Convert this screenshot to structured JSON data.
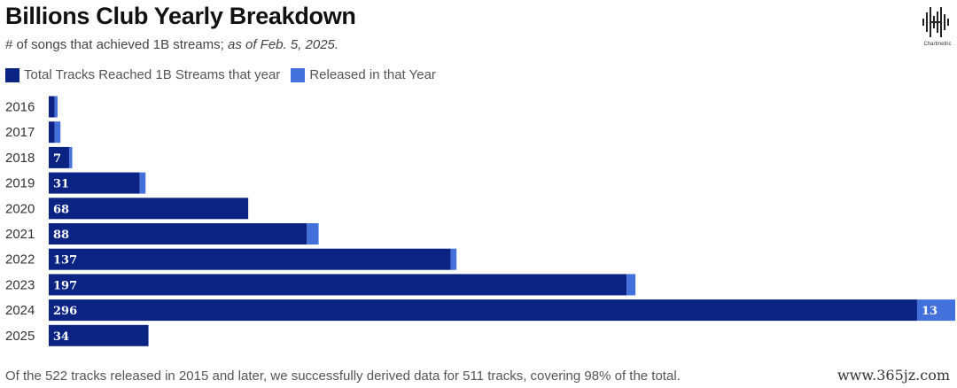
{
  "header": {
    "title": "Billions Club Yearly Breakdown",
    "subtitle_main": "# of songs that achieved 1B streams; ",
    "subtitle_italic": "as of Feb. 5, 2025."
  },
  "logo": {
    "text": "Chartmetric"
  },
  "footnote": "Of the 522 tracks released in 2015 and later, we successfully derived data for 511 tracks, covering 98% of the total.",
  "watermark": "www.365jz.com",
  "colors": {
    "total": "#0b2483",
    "released": "#4470dc"
  },
  "chart_data": {
    "type": "bar",
    "orientation": "horizontal",
    "stacked": true,
    "categories": [
      "2016",
      "2017",
      "2018",
      "2019",
      "2020",
      "2021",
      "2022",
      "2023",
      "2024",
      "2025"
    ],
    "series": [
      {
        "name": "Total Tracks Reached 1B Streams that year",
        "values": [
          2,
          2,
          7,
          31,
          68,
          88,
          137,
          197,
          296,
          34
        ],
        "labels": [
          "",
          "",
          "7",
          "31",
          "68",
          "88",
          "137",
          "197",
          "296",
          "34"
        ]
      },
      {
        "name": "Released in that Year",
        "values": [
          1,
          2,
          1,
          2,
          0,
          4,
          2,
          3,
          13,
          0
        ],
        "labels": [
          "",
          "",
          "",
          "",
          "",
          "",
          "",
          "",
          "13",
          ""
        ]
      }
    ],
    "xlim": [
      0,
      309
    ],
    "legend": "top-left",
    "grid": false
  }
}
